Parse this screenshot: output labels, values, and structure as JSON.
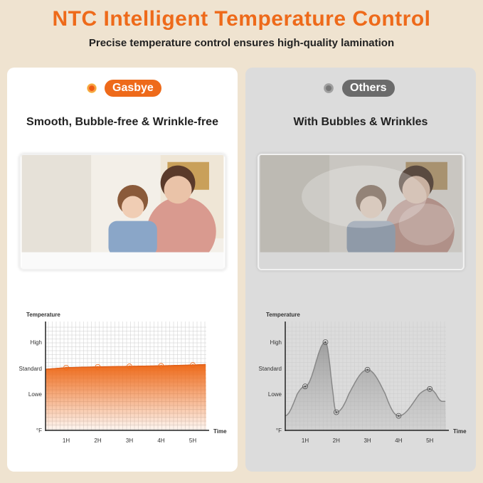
{
  "header": {
    "title": "NTC Intelligent Temperature Control",
    "subtitle": "Precise temperature control ensures high-quality lamination"
  },
  "left": {
    "badge": "Gasbye",
    "caption": "Smooth, Bubble-free & Wrinkle-free",
    "accent": "#ee6a1a"
  },
  "right": {
    "badge": "Others",
    "caption": "With Bubbles & Wrinkles",
    "accent": "#6b6b6b"
  },
  "chart_data": [
    {
      "type": "area",
      "ylabel": "Temperature",
      "xlabel": "Time",
      "y_ticks": [
        "°F",
        "Lowe",
        "Standard",
        "High"
      ],
      "x_ticks": [
        "1H",
        "2H",
        "3H",
        "4H",
        "5H"
      ],
      "grid": true,
      "series": [
        {
          "points": [
            [
              0.35,
              1.97
            ],
            [
              1,
              2.03
            ],
            [
              2,
              2.06
            ],
            [
              3,
              2.08
            ],
            [
              4,
              2.1
            ],
            [
              5,
              2.13
            ],
            [
              5.4,
              2.15
            ]
          ],
          "markers": [
            1,
            2,
            3,
            4,
            5
          ]
        }
      ]
    },
    {
      "type": "area",
      "ylabel": "Temperature",
      "xlabel": "Time",
      "y_ticks": [
        "°F",
        "Lowe",
        "Standard",
        "High"
      ],
      "x_ticks": [
        "1H",
        "2H",
        "3H",
        "4H",
        "5H"
      ],
      "grid": true,
      "series": [
        {
          "points": [
            [
              0.35,
              0.4
            ],
            [
              1,
              1.3
            ],
            [
              1.65,
              3.0
            ],
            [
              2,
              0.5
            ],
            [
              3,
              1.95
            ],
            [
              4,
              0.4
            ],
            [
              5,
              1.2
            ],
            [
              5.4,
              0.8
            ]
          ],
          "markers": [
            1,
            1.65,
            2,
            3,
            4,
            5
          ]
        }
      ]
    }
  ]
}
